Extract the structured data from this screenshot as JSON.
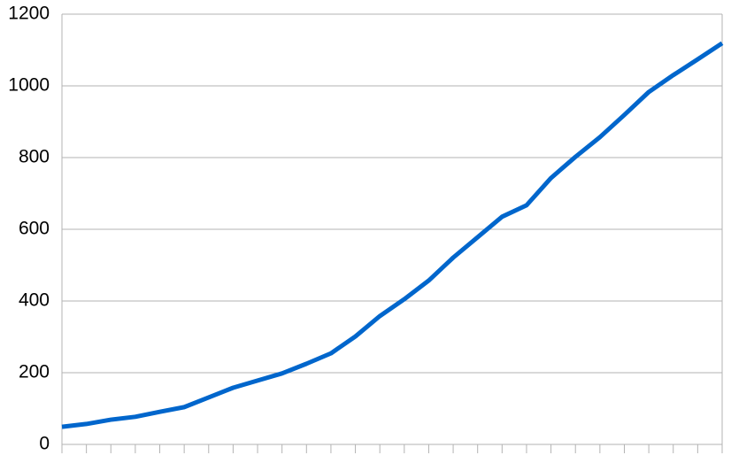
{
  "chart_data": {
    "type": "line",
    "categories": [
      null,
      null,
      null,
      null,
      null,
      null,
      null,
      null,
      null,
      null,
      null,
      null,
      null,
      null,
      null,
      null,
      null,
      null,
      null,
      null,
      null,
      null,
      null,
      null,
      null,
      null,
      null,
      null
    ],
    "series": [
      {
        "color": "#0066cc",
        "values": [
          49,
          57,
          69,
          77,
          91,
          104,
          131,
          158,
          178,
          198,
          225,
          254,
          301,
          358,
          405,
          457,
          521,
          578,
          635,
          667,
          743,
          802,
          857,
          919,
          983,
          1030,
          1074,
          1119
        ]
      }
    ],
    "ylim": [
      0,
      1200
    ],
    "yticks": [
      0,
      200,
      400,
      600,
      800,
      1000,
      1200
    ],
    "grid": true
  }
}
